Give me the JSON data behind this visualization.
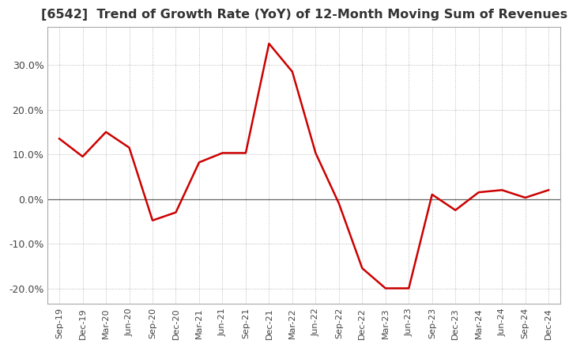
{
  "title": "[6542]  Trend of Growth Rate (YoY) of 12-Month Moving Sum of Revenues",
  "title_fontsize": 11.5,
  "line_color": "#cc0000",
  "background_color": "#ffffff",
  "grid_color": "#aaaaaa",
  "ylim": [
    -0.235,
    0.385
  ],
  "yticks": [
    -0.2,
    -0.1,
    0.0,
    0.1,
    0.2,
    0.3
  ],
  "ytick_labels": [
    "-20.0%",
    "-10.0%",
    "0.0%",
    "10.0%",
    "20.0%",
    "30.0%"
  ],
  "dates": [
    "Sep-19",
    "Dec-19",
    "Mar-20",
    "Jun-20",
    "Sep-20",
    "Dec-20",
    "Mar-21",
    "Jun-21",
    "Sep-21",
    "Dec-21",
    "Mar-22",
    "Jun-22",
    "Sep-22",
    "Dec-22",
    "Mar-23",
    "Jun-23",
    "Sep-23",
    "Dec-23",
    "Mar-24",
    "Jun-24",
    "Sep-24",
    "Dec-24"
  ],
  "values": [
    0.135,
    0.095,
    0.15,
    0.115,
    -0.048,
    -0.03,
    0.082,
    0.103,
    0.103,
    0.348,
    0.285,
    0.103,
    -0.01,
    -0.155,
    -0.2,
    -0.2,
    0.01,
    -0.025,
    0.015,
    0.02,
    0.003,
    0.02
  ],
  "xtick_fontsize": 8,
  "ytick_fontsize": 9,
  "linewidth": 1.8
}
